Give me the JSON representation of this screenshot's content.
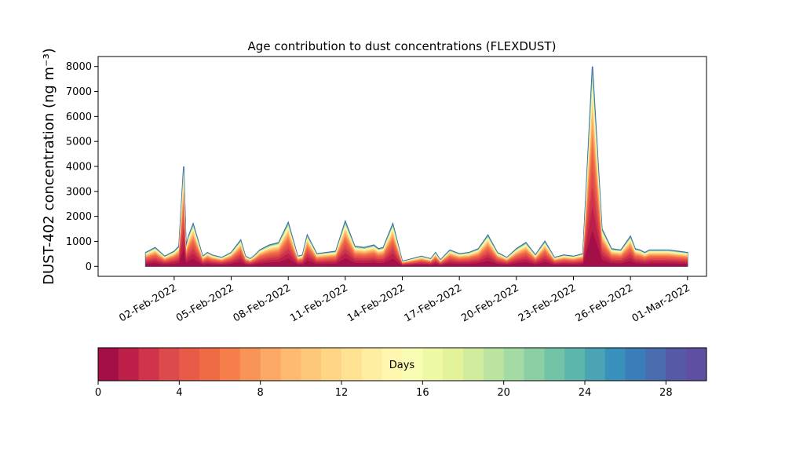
{
  "chart_data": {
    "type": "area",
    "title": "Age contribution to dust concentrations (FLEXDUST)",
    "ylabel": "DUST-402 concentration (ng m⁻³)",
    "xlabel": "",
    "ylim": [
      -400,
      8400
    ],
    "yticks": [
      0,
      1000,
      2000,
      3000,
      4000,
      5000,
      6000,
      7000,
      8000
    ],
    "xlim": [
      "2022-01-29",
      "2022-03-02"
    ],
    "xticks": [
      "02-Feb-2022",
      "05-Feb-2022",
      "08-Feb-2022",
      "11-Feb-2022",
      "14-Feb-2022",
      "17-Feb-2022",
      "20-Feb-2022",
      "23-Feb-2022",
      "26-Feb-2022",
      "01-Mar-2022"
    ],
    "xtick_dates": [
      "2022-02-02",
      "2022-02-05",
      "2022-02-08",
      "2022-02-11",
      "2022-02-14",
      "2022-02-17",
      "2022-02-20",
      "2022-02-23",
      "2022-02-26",
      "2022-03-01"
    ],
    "grid": false,
    "total_series": {
      "dates": [
        "2022-01-31 12:00",
        "2022-02-01 00:00",
        "2022-02-01 12:00",
        "2022-02-02 00:00",
        "2022-02-02 06:00",
        "2022-02-02 12:00",
        "2022-02-02 15:00",
        "2022-02-02 18:00",
        "2022-02-03 00:00",
        "2022-02-03 12:00",
        "2022-02-03 18:00",
        "2022-02-04 00:00",
        "2022-02-04 12:00",
        "2022-02-05 00:00",
        "2022-02-05 12:00",
        "2022-02-05 18:00",
        "2022-02-06 00:00",
        "2022-02-06 06:00",
        "2022-02-06 12:00",
        "2022-02-07 00:00",
        "2022-02-07 12:00",
        "2022-02-08 00:00",
        "2022-02-08 12:00",
        "2022-02-08 18:00",
        "2022-02-09 00:00",
        "2022-02-09 12:00",
        "2022-02-10 00:00",
        "2022-02-10 12:00",
        "2022-02-11 00:00",
        "2022-02-11 12:00",
        "2022-02-12 00:00",
        "2022-02-12 12:00",
        "2022-02-12 18:00",
        "2022-02-13 00:00",
        "2022-02-13 12:00",
        "2022-02-14 00:00",
        "2022-02-14 12:00",
        "2022-02-15 00:00",
        "2022-02-15 12:00",
        "2022-02-15 18:00",
        "2022-02-16 00:00",
        "2022-02-16 12:00",
        "2022-02-17 00:00",
        "2022-02-17 12:00",
        "2022-02-18 00:00",
        "2022-02-18 12:00",
        "2022-02-19 00:00",
        "2022-02-19 12:00",
        "2022-02-20 00:00",
        "2022-02-20 12:00",
        "2022-02-21 00:00",
        "2022-02-21 12:00",
        "2022-02-22 00:00",
        "2022-02-22 12:00",
        "2022-02-23 00:00",
        "2022-02-23 12:00",
        "2022-02-24 00:00",
        "2022-02-24 12:00",
        "2022-02-25 00:00",
        "2022-02-25 12:00",
        "2022-02-26 00:00",
        "2022-02-26 06:00",
        "2022-02-26 12:00",
        "2022-02-26 18:00",
        "2022-02-27 00:00",
        "2022-02-27 12:00",
        "2022-02-28 00:00",
        "2022-02-28 12:00",
        "2022-03-01 00:00"
      ],
      "values": [
        550,
        750,
        400,
        600,
        800,
        4000,
        800,
        1200,
        1700,
        400,
        550,
        450,
        350,
        550,
        1050,
        400,
        300,
        450,
        650,
        850,
        950,
        1750,
        400,
        450,
        1250,
        500,
        550,
        600,
        1800,
        800,
        750,
        850,
        700,
        750,
        1700,
        200,
        300,
        400,
        300,
        550,
        250,
        650,
        500,
        550,
        700,
        1250,
        550,
        350,
        700,
        950,
        450,
        1000,
        350,
        450,
        400,
        500,
        8000,
        1500,
        700,
        650,
        1200,
        700,
        650,
        550,
        650,
        650,
        650,
        600,
        550
      ]
    },
    "age_layers": {
      "count": 30,
      "days_range": [
        0,
        30
      ],
      "cumulative_fraction": [
        0.18,
        0.3,
        0.4,
        0.48,
        0.55,
        0.61,
        0.66,
        0.7,
        0.74,
        0.77,
        0.8,
        0.825,
        0.845,
        0.865,
        0.88,
        0.895,
        0.91,
        0.922,
        0.934,
        0.945,
        0.955,
        0.964,
        0.972,
        0.979,
        0.985,
        0.99,
        0.994,
        0.997,
        0.999,
        1.0
      ]
    },
    "colorbar": {
      "label": "Days",
      "ticks": [
        0,
        4,
        8,
        12,
        16,
        20,
        24,
        28
      ],
      "range": [
        0,
        30
      ],
      "colors": [
        "#a50f47",
        "#bc2049",
        "#d0344d",
        "#dd4a4c",
        "#e85b49",
        "#ef6b45",
        "#f67e4b",
        "#f99459",
        "#fca866",
        "#fdba70",
        "#fec87a",
        "#fed686",
        "#fee293",
        "#feeea1",
        "#fff7b0",
        "#f8fcb4",
        "#eef8a5",
        "#e2f399",
        "#d1ec9c",
        "#bce4a0",
        "#a4daa3",
        "#8ccfa4",
        "#73c4a6",
        "#5cb6ab",
        "#4aa4b3",
        "#3990ba",
        "#3a7db8",
        "#4a6cae",
        "#5659a5",
        "#5e4fa2"
      ]
    }
  }
}
